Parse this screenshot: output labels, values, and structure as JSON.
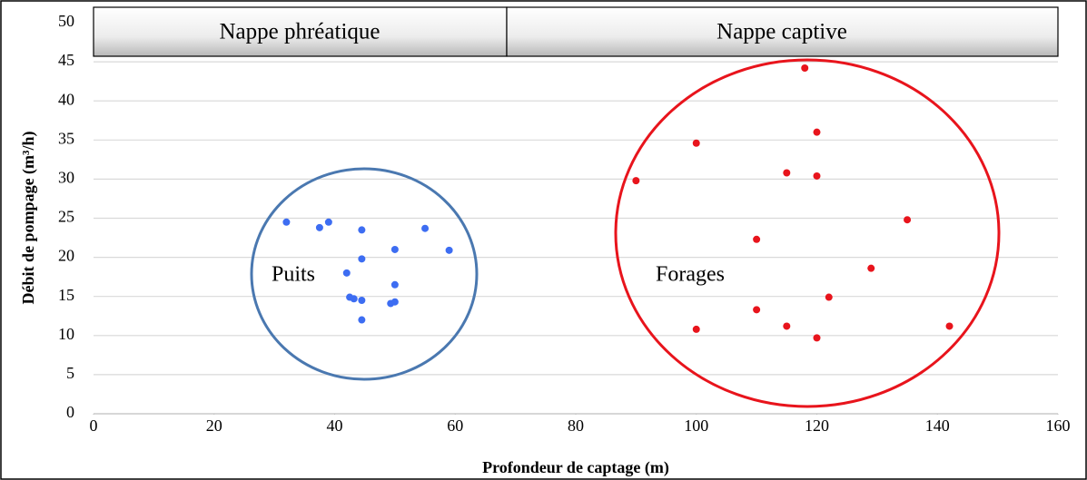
{
  "chart_data": {
    "type": "scatter",
    "x_label": "Profondeur de captage (m)",
    "y_label": "Débit de pompage (m³/h)",
    "header_labels": [
      "Nappe phréatique",
      "Nappe captive"
    ],
    "xlim": [
      0,
      160
    ],
    "xticks": [
      0,
      20,
      40,
      60,
      80,
      100,
      120,
      140,
      160
    ],
    "ylim": [
      0,
      50
    ],
    "yticks": [
      0,
      5,
      10,
      15,
      20,
      25,
      30,
      35,
      40,
      45,
      50
    ],
    "grid": true,
    "series": [
      {
        "name": "Puits",
        "color": "#3d6df2",
        "x": [
          32,
          37.5,
          39,
          44.5,
          55,
          59,
          50,
          44.5,
          42,
          50,
          42.5,
          43.2,
          44.5,
          49.3,
          50,
          44.5
        ],
        "values": [
          24.5,
          23.8,
          24.5,
          23.5,
          23.7,
          20.9,
          21,
          19.8,
          18,
          16.5,
          14.9,
          14.7,
          14.5,
          14.1,
          14.3,
          12
        ]
      },
      {
        "name": "Forages",
        "color": "#e8141c",
        "x": [
          118,
          120,
          100,
          115,
          120,
          90,
          135,
          110,
          129,
          122,
          110,
          115,
          142,
          100,
          120
        ],
        "values": [
          44.2,
          36,
          34.6,
          30.8,
          30.4,
          29.8,
          24.8,
          22.3,
          18.6,
          14.9,
          13.3,
          11.2,
          11.2,
          10.8,
          9.7
        ]
      }
    ]
  }
}
